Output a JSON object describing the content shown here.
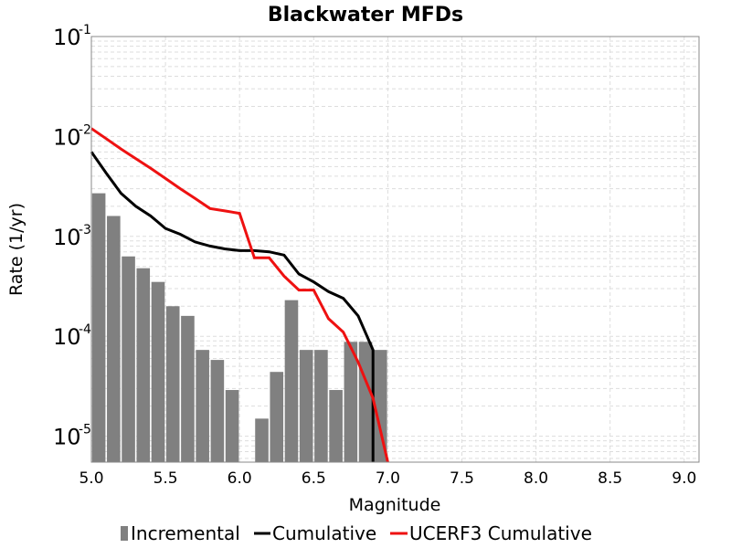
{
  "chart_data": {
    "type": "bar+line",
    "title": "Blackwater MFDs",
    "xlabel": "Magnitude",
    "ylabel": "Rate (1/yr)",
    "xlim": [
      5.0,
      9.1
    ],
    "ylim": [
      5.5e-06,
      0.1
    ],
    "yscale": "log",
    "grid": true,
    "legend_position": "bottom",
    "x_ticks": [
      "5.0",
      "5.5",
      "6.0",
      "6.5",
      "7.0",
      "7.5",
      "8.0",
      "8.5",
      "9.0"
    ],
    "y_ticks": [
      {
        "value": 0.1,
        "base": "10",
        "exp": "-1"
      },
      {
        "value": 0.01,
        "base": "10",
        "exp": "-2"
      },
      {
        "value": 0.001,
        "base": "10",
        "exp": "-3"
      },
      {
        "value": 0.0001,
        "base": "10",
        "exp": "-4"
      },
      {
        "value": 1e-05,
        "base": "10",
        "exp": "-5"
      }
    ],
    "series": [
      {
        "name": "Incremental",
        "kind": "bar",
        "color": "#808080",
        "bar_width": 0.09,
        "x": [
          5.05,
          5.15,
          5.25,
          5.35,
          5.45,
          5.55,
          5.65,
          5.75,
          5.85,
          5.95,
          6.05,
          6.15,
          6.25,
          6.35,
          6.45,
          6.55,
          6.65,
          6.75,
          6.85,
          6.95
        ],
        "y": [
          0.0027,
          0.0016,
          0.00063,
          0.00048,
          0.00035,
          0.0002,
          0.00016,
          7.3e-05,
          5.8e-05,
          2.9e-05,
          null,
          1.5e-05,
          4.4e-05,
          0.00023,
          7.3e-05,
          7.3e-05,
          2.9e-05,
          8.8e-05,
          8.8e-05,
          7.3e-05
        ]
      },
      {
        "name": "Cumulative",
        "kind": "line",
        "color": "#000000",
        "x": [
          5.0,
          5.1,
          5.2,
          5.3,
          5.4,
          5.5,
          5.6,
          5.7,
          5.8,
          5.9,
          6.0,
          6.1,
          6.2,
          6.3,
          6.4,
          6.5,
          6.6,
          6.7,
          6.8,
          6.9,
          6.9
        ],
        "y": [
          0.007,
          0.0043,
          0.0027,
          0.002,
          0.0016,
          0.0012,
          0.00105,
          0.00088,
          0.0008,
          0.00075,
          0.00072,
          0.00072,
          0.0007,
          0.00065,
          0.00042,
          0.00035,
          0.00028,
          0.00024,
          0.00016,
          7.3e-05,
          5.5e-06
        ]
      },
      {
        "name": "UCERF3 Cumulative",
        "kind": "line",
        "color": "#ee1111",
        "x": [
          5.0,
          5.1,
          5.2,
          5.3,
          5.4,
          5.5,
          5.6,
          5.7,
          5.8,
          5.9,
          6.0,
          6.1,
          6.2,
          6.3,
          6.4,
          6.5,
          6.6,
          6.7,
          6.8,
          6.9,
          7.0,
          7.0
        ],
        "y": [
          0.012,
          0.0095,
          0.0075,
          0.006,
          0.0048,
          0.0038,
          0.003,
          0.0024,
          0.0019,
          0.0018,
          0.0017,
          0.00061,
          0.00061,
          0.0004,
          0.00029,
          0.00029,
          0.00015,
          0.00011,
          5.5e-05,
          2.4e-05,
          5.5e-06,
          5.5e-06
        ]
      }
    ]
  }
}
